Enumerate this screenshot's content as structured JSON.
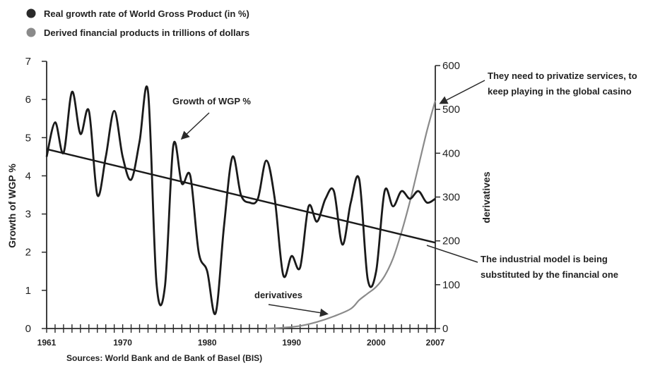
{
  "chart_data": {
    "type": "line",
    "legend": [
      {
        "label": "Real growth rate of World Gross Product (in %)",
        "color": "#2a2a2a"
      },
      {
        "label": "Derived financial products in trillions of dollars",
        "color": "#8a8a8a"
      }
    ],
    "ylabel": "Growth of WGP %",
    "y2label": "derivatives",
    "ylim": [
      0,
      7
    ],
    "y2lim": [
      0,
      600
    ],
    "yticks": [
      0,
      1,
      2,
      3,
      4,
      5,
      6,
      7
    ],
    "y2ticks": [
      0,
      100,
      200,
      300,
      400,
      500,
      600
    ],
    "xlim": [
      1961,
      2007
    ],
    "xtick_labels": [
      {
        "x": 1961,
        "label": "1961"
      },
      {
        "x": 1970,
        "label": "1970"
      },
      {
        "x": 1980,
        "label": "1980"
      },
      {
        "x": 1990,
        "label": "1990"
      },
      {
        "x": 2000,
        "label": "2000"
      },
      {
        "x": 2007,
        "label": "2007"
      }
    ],
    "series": [
      {
        "name": "Growth of WGP %",
        "axis": "left",
        "x": [
          1961,
          1962,
          1963,
          1964,
          1965,
          1966,
          1967,
          1968,
          1969,
          1970,
          1971,
          1972,
          1973,
          1974,
          1975,
          1976,
          1977,
          1978,
          1979,
          1980,
          1981,
          1982,
          1983,
          1984,
          1985,
          1986,
          1987,
          1988,
          1989,
          1990,
          1991,
          1992,
          1993,
          1994,
          1995,
          1996,
          1997,
          1998,
          1999,
          2000,
          2001,
          2002,
          2003,
          2004,
          2005,
          2006,
          2007
        ],
        "y": [
          4.5,
          5.4,
          4.6,
          6.2,
          5.1,
          5.7,
          3.5,
          4.5,
          5.7,
          4.5,
          3.9,
          4.9,
          6.2,
          1.2,
          1.1,
          4.8,
          3.8,
          4.0,
          2.0,
          1.5,
          0.4,
          2.7,
          4.5,
          3.5,
          3.3,
          3.4,
          4.4,
          3.4,
          1.4,
          1.9,
          1.6,
          3.2,
          2.8,
          3.4,
          3.6,
          2.2,
          3.3,
          3.9,
          1.3,
          1.5,
          3.6,
          3.2,
          3.6,
          3.4,
          3.6,
          3.3,
          3.4
        ]
      },
      {
        "name": "Trend",
        "axis": "left",
        "x": [
          1961,
          2007
        ],
        "y": [
          4.7,
          2.25
        ]
      },
      {
        "name": "Derivatives",
        "axis": "right",
        "x": [
          1987,
          1989,
          1991,
          1993,
          1995,
          1997,
          1998,
          1999,
          2000,
          2001,
          2002,
          2003,
          2004,
          2005,
          2006,
          2007
        ],
        "y": [
          0,
          2,
          6,
          15,
          28,
          45,
          65,
          80,
          95,
          120,
          160,
          220,
          290,
          370,
          450,
          520
        ]
      }
    ],
    "annotations": [
      {
        "text": "Growth of WGP %"
      },
      {
        "text": "derivatives"
      },
      {
        "lines": [
          "They need to privatize services, to",
          "keep playing in the global casino"
        ]
      },
      {
        "lines": [
          "The industrial model is being",
          "substituted by the financial one"
        ]
      }
    ],
    "source": "Sources: World Bank and de Bank of Basel (BIS)",
    "grid": false
  }
}
